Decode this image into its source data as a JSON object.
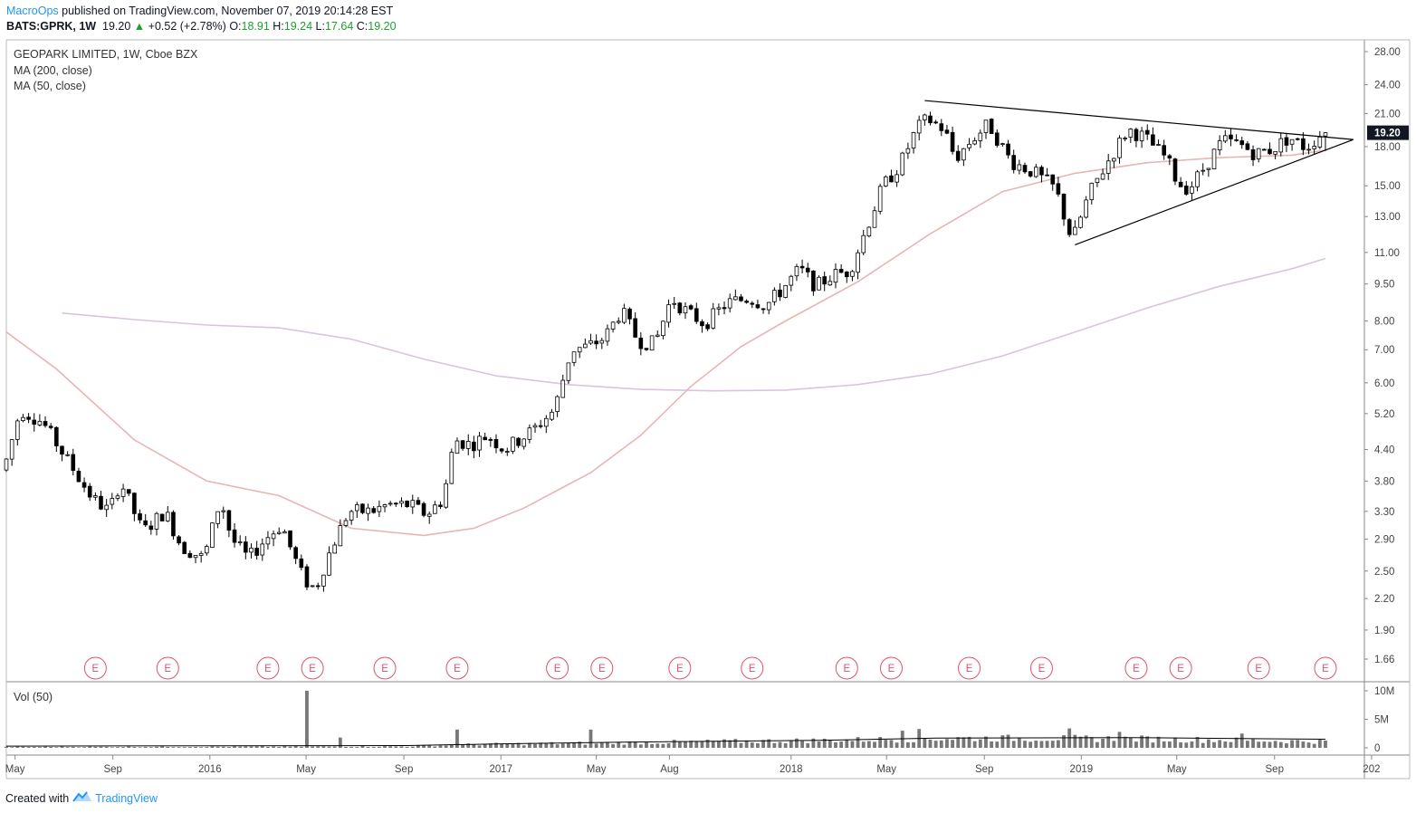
{
  "header": {
    "author": "MacroOps",
    "published_text": " published on TradingView.com, November 07, 2019 20:14:28 EST",
    "symbol": "BATS:GPRK, 1W",
    "last": "19.20",
    "change_arrow": "▲",
    "change": "+0.52 (+2.78%)",
    "o_label": "O:",
    "o": "18.91",
    "h_label": "H:",
    "h": "19.24",
    "l_label": "L:",
    "l": "17.64",
    "c_label": "C:",
    "c": "19.20"
  },
  "legend": {
    "title": "GEOPARK LIMITED, 1W, Cboe BZX",
    "ma200": "MA (200, close)",
    "ma50": "MA (50, close)",
    "volume": "Vol (50)"
  },
  "footer": {
    "created_with": "Created with",
    "brand": "TradingView"
  },
  "colors": {
    "up": "#ffffff",
    "down": "#000000",
    "ma50": "#e8b4b4",
    "ma200": "#d9c4dc",
    "earnings": "#e05268",
    "volume": "#777777",
    "price_badge": "#131722"
  },
  "chart_data": {
    "type": "candlestick",
    "title": "GEOPARK LIMITED, 1W, Cboe BZX",
    "y_scale": "log",
    "y_ticks": [
      28.0,
      24.0,
      21.0,
      18.0,
      15.0,
      13.0,
      11.0,
      9.5,
      8.0,
      7.0,
      6.0,
      5.2,
      4.4,
      3.8,
      3.3,
      2.9,
      2.5,
      2.2,
      1.9,
      1.66
    ],
    "y_tick_labels": [
      "28.00",
      "24.00",
      "21.00",
      "18.00",
      "15.00",
      "13.00",
      "11.00",
      "9.50",
      "8.00",
      "7.00",
      "6.00",
      "5.20",
      "4.40",
      "3.80",
      "3.30",
      "2.90",
      "2.50",
      "2.20",
      "1.90",
      "1.66"
    ],
    "x_range": [
      "2015-04-20",
      "2019-12-23"
    ],
    "x_ticks": [
      {
        "label": "May",
        "date": "2015-05-01"
      },
      {
        "label": "Sep",
        "date": "2015-09-01"
      },
      {
        "label": "2016",
        "date": "2016-01-01"
      },
      {
        "label": "May",
        "date": "2016-05-01"
      },
      {
        "label": "Sep",
        "date": "2016-09-01"
      },
      {
        "label": "2017",
        "date": "2017-01-01"
      },
      {
        "label": "May",
        "date": "2017-05-01"
      },
      {
        "label": "Aug",
        "date": "2017-08-01"
      },
      {
        "label": "2018",
        "date": "2018-01-01"
      },
      {
        "label": "May",
        "date": "2018-05-01"
      },
      {
        "label": "Sep",
        "date": "2018-09-01"
      },
      {
        "label": "2019",
        "date": "2019-01-01"
      },
      {
        "label": "May",
        "date": "2019-05-01"
      },
      {
        "label": "Sep",
        "date": "2019-09-01"
      },
      {
        "label": "202",
        "date": "2020-01-01"
      }
    ],
    "last_price_label": "19.20",
    "last_price": 19.2,
    "anchors": [
      [
        "2015-04-20",
        4.0
      ],
      [
        "2015-05-11",
        5.3
      ],
      [
        "2015-06-08",
        5.0
      ],
      [
        "2015-07-13",
        4.1
      ],
      [
        "2015-08-10",
        3.5
      ],
      [
        "2015-08-31",
        3.3
      ],
      [
        "2015-09-14",
        3.8
      ],
      [
        "2015-10-12",
        3.0
      ],
      [
        "2015-11-09",
        3.3
      ],
      [
        "2015-11-30",
        2.8
      ],
      [
        "2015-12-28",
        2.65
      ],
      [
        "2016-01-18",
        3.5
      ],
      [
        "2016-02-01",
        2.9
      ],
      [
        "2016-02-22",
        2.65
      ],
      [
        "2016-03-14",
        2.9
      ],
      [
        "2016-04-04",
        3.1
      ],
      [
        "2016-04-18",
        2.7
      ],
      [
        "2016-05-02",
        2.4
      ],
      [
        "2016-05-16",
        2.3
      ],
      [
        "2016-06-06",
        2.8
      ],
      [
        "2016-06-27",
        3.3
      ],
      [
        "2016-07-25",
        3.3
      ],
      [
        "2016-08-15",
        3.4
      ],
      [
        "2016-09-12",
        3.4
      ],
      [
        "2016-10-03",
        3.25
      ],
      [
        "2016-10-24",
        3.5
      ],
      [
        "2016-11-07",
        4.6
      ],
      [
        "2016-11-28",
        4.5
      ],
      [
        "2016-12-19",
        4.7
      ],
      [
        "2017-01-09",
        4.4
      ],
      [
        "2017-02-13",
        4.8
      ],
      [
        "2017-03-13",
        5.3
      ],
      [
        "2017-04-03",
        7.0
      ],
      [
        "2017-04-24",
        7.1
      ],
      [
        "2017-05-15",
        7.4
      ],
      [
        "2017-06-05",
        8.4
      ],
      [
        "2017-06-26",
        7.3
      ],
      [
        "2017-07-17",
        7.2
      ],
      [
        "2017-08-07",
        8.9
      ],
      [
        "2017-08-28",
        8.3
      ],
      [
        "2017-09-18",
        7.9
      ],
      [
        "2017-10-16",
        8.7
      ],
      [
        "2017-11-13",
        8.9
      ],
      [
        "2017-12-04",
        8.6
      ],
      [
        "2017-12-25",
        9.3
      ],
      [
        "2018-01-15",
        10.2
      ],
      [
        "2018-02-05",
        9.4
      ],
      [
        "2018-02-26",
        9.9
      ],
      [
        "2018-03-19",
        10.1
      ],
      [
        "2018-04-02",
        11.5
      ],
      [
        "2018-04-30",
        15.0
      ],
      [
        "2018-05-21",
        16.5
      ],
      [
        "2018-06-11",
        19.5
      ],
      [
        "2018-06-25",
        20.5
      ],
      [
        "2018-07-16",
        19.5
      ],
      [
        "2018-07-30",
        17.0
      ],
      [
        "2018-08-20",
        18.6
      ],
      [
        "2018-09-10",
        20.0
      ],
      [
        "2018-10-08",
        16.8
      ],
      [
        "2018-11-05",
        16.0
      ],
      [
        "2018-12-03",
        14.8
      ],
      [
        "2018-12-24",
        11.6
      ],
      [
        "2019-01-14",
        14.4
      ],
      [
        "2019-02-04",
        16.5
      ],
      [
        "2019-03-04",
        19.5
      ],
      [
        "2019-03-25",
        18.8
      ],
      [
        "2019-04-22",
        17.0
      ],
      [
        "2019-05-06",
        15.2
      ],
      [
        "2019-05-20",
        14.8
      ],
      [
        "2019-06-10",
        16.5
      ],
      [
        "2019-07-01",
        18.5
      ],
      [
        "2019-07-22",
        18.2
      ],
      [
        "2019-08-12",
        17.4
      ],
      [
        "2019-09-02",
        17.8
      ],
      [
        "2019-09-23",
        18.8
      ],
      [
        "2019-10-14",
        17.9
      ],
      [
        "2019-11-04",
        19.2
      ]
    ],
    "ohlc_last": {
      "open": 18.91,
      "high": 19.24,
      "low": 17.64,
      "close": 19.2
    },
    "ma200": [
      [
        "2015-06-29",
        8.3
      ],
      [
        "2015-09-28",
        8.05
      ],
      [
        "2015-12-28",
        7.85
      ],
      [
        "2016-03-28",
        7.75
      ],
      [
        "2016-06-27",
        7.35
      ],
      [
        "2016-09-26",
        6.7
      ],
      [
        "2016-12-26",
        6.2
      ],
      [
        "2017-03-27",
        5.95
      ],
      [
        "2017-06-26",
        5.82
      ],
      [
        "2017-09-25",
        5.78
      ],
      [
        "2017-12-25",
        5.8
      ],
      [
        "2018-03-26",
        5.95
      ],
      [
        "2018-06-25",
        6.25
      ],
      [
        "2018-09-24",
        6.8
      ],
      [
        "2018-12-24",
        7.6
      ],
      [
        "2019-03-25",
        8.5
      ],
      [
        "2019-06-24",
        9.4
      ],
      [
        "2019-09-23",
        10.2
      ],
      [
        "2019-11-04",
        10.7
      ]
    ],
    "ma50": [
      [
        "2015-04-20",
        7.6
      ],
      [
        "2015-06-22",
        6.4
      ],
      [
        "2015-09-28",
        4.6
      ],
      [
        "2015-12-28",
        3.8
      ],
      [
        "2016-03-28",
        3.55
      ],
      [
        "2016-06-27",
        3.05
      ],
      [
        "2016-09-26",
        2.95
      ],
      [
        "2016-11-28",
        3.05
      ],
      [
        "2017-01-30",
        3.35
      ],
      [
        "2017-04-24",
        3.95
      ],
      [
        "2017-06-26",
        4.7
      ],
      [
        "2017-08-28",
        5.9
      ],
      [
        "2017-10-30",
        7.1
      ],
      [
        "2017-12-25",
        8.0
      ],
      [
        "2018-03-26",
        9.6
      ],
      [
        "2018-06-25",
        12.0
      ],
      [
        "2018-09-24",
        14.6
      ],
      [
        "2018-12-24",
        15.9
      ],
      [
        "2019-03-25",
        16.7
      ],
      [
        "2019-06-24",
        17.1
      ],
      [
        "2019-09-23",
        17.3
      ],
      [
        "2019-11-04",
        17.7
      ]
    ],
    "trendlines": [
      {
        "from": [
          "2018-06-18",
          22.3
        ],
        "to": [
          "2019-12-09",
          18.6
        ]
      },
      {
        "from": [
          "2018-12-24",
          11.4
        ],
        "to": [
          "2019-12-09",
          18.6
        ]
      }
    ],
    "earnings_label": "E",
    "earnings": [
      "2015-08-10",
      "2015-11-09",
      "2016-03-14",
      "2016-05-09",
      "2016-08-08",
      "2016-11-07",
      "2017-03-13",
      "2017-05-08",
      "2017-08-14",
      "2017-11-13",
      "2018-03-12",
      "2018-05-07",
      "2018-08-13",
      "2018-11-12",
      "2019-03-11",
      "2019-05-06",
      "2019-08-12",
      "2019-11-04"
    ],
    "volume": {
      "label": "Vol (50)",
      "y_ticks": [
        0,
        5000000,
        10000000
      ],
      "y_tick_labels": [
        "0",
        "5M",
        "10M"
      ],
      "spikes": [
        [
          "2016-05-02",
          10000000
        ],
        [
          "2016-06-13",
          1800000
        ],
        [
          "2016-11-07",
          3200000
        ],
        [
          "2017-04-24",
          3200000
        ],
        [
          "2018-05-21",
          3000000
        ],
        [
          "2018-06-11",
          3300000
        ],
        [
          "2018-12-17",
          3400000
        ],
        [
          "2019-02-18",
          2800000
        ],
        [
          "2019-07-22",
          2500000
        ]
      ],
      "base_level": [
        [
          "2015-04-20",
          150000
        ],
        [
          "2016-09-05",
          250000
        ],
        [
          "2016-11-28",
          600000
        ],
        [
          "2017-06-05",
          900000
        ],
        [
          "2018-02-05",
          1300000
        ],
        [
          "2018-08-06",
          1700000
        ],
        [
          "2019-03-04",
          1600000
        ],
        [
          "2019-11-04",
          1100000
        ]
      ],
      "ma": [
        [
          "2015-04-20",
          300000
        ],
        [
          "2016-09-05",
          400000
        ],
        [
          "2017-01-02",
          700000
        ],
        [
          "2017-06-05",
          1000000
        ],
        [
          "2018-02-05",
          1300000
        ],
        [
          "2018-07-02",
          1700000
        ],
        [
          "2019-03-04",
          1800000
        ],
        [
          "2019-11-04",
          1500000
        ]
      ]
    }
  }
}
